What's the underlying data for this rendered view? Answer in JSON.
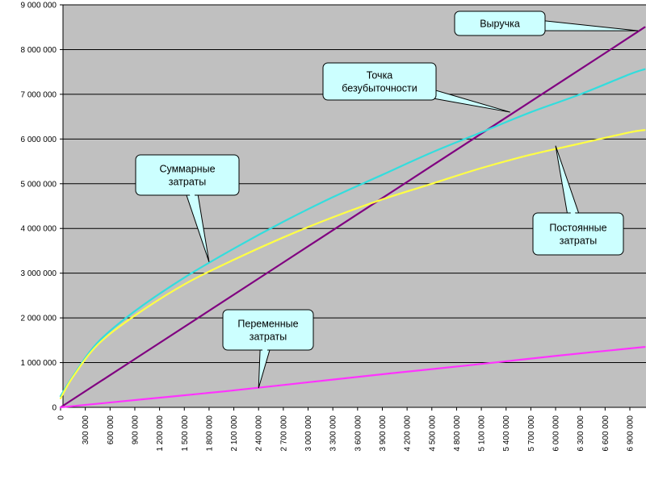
{
  "chart_data": {
    "type": "line",
    "title": "",
    "xlabel": "",
    "ylabel": "",
    "xlim": [
      0,
      7200000
    ],
    "ylim": [
      0,
      9000000
    ],
    "grid": true,
    "colors": {
      "plot_background": "#c0c0c0",
      "gridline": "#000000",
      "callout_fill": "#ccffff"
    },
    "y_tick_labels": [
      "0",
      "1 000 000",
      "2 000 000",
      "3 000 000",
      "4 000 000",
      "5 000 000",
      "6 000 000",
      "7 000 000",
      "8 000 000",
      "9 000 000"
    ],
    "x_tick_labels": [
      "0",
      "300 000",
      "600 000",
      "900 000",
      "1 200 000",
      "1 500 000",
      "1 800 000",
      "2 100 000",
      "2 400 000",
      "2 700 000",
      "3 000 000",
      "3 300 000",
      "3 600 000",
      "3 900 000",
      "4 200 000",
      "4 500 000",
      "4 800 000",
      "5 100 000",
      "5 400 000",
      "5 700 000",
      "6 000 000",
      "6 300 000",
      "6 600 000",
      "6 900 000"
    ],
    "series": [
      {
        "name": "Выручка",
        "color": "#800080",
        "x": [
          0,
          900000,
          1800000,
          2700000,
          3600000,
          4500000,
          5400000,
          6300000,
          7080000
        ],
        "values": [
          0,
          1080000,
          2160000,
          3240000,
          4320000,
          5400000,
          6480000,
          7560000,
          8500000
        ]
      },
      {
        "name": "Суммарные затраты",
        "color": "#33dddd",
        "x": [
          0,
          150000,
          450000,
          900000,
          1500000,
          2100000,
          2700000,
          3300000,
          3900000,
          4500000,
          5100000,
          5700000,
          6300000,
          6900000,
          7080000
        ],
        "values": [
          250000,
          700000,
          1450000,
          2150000,
          2900000,
          3550000,
          4150000,
          4700000,
          5200000,
          5700000,
          6150000,
          6600000,
          7000000,
          7450000,
          7560000
        ]
      },
      {
        "name": "Постоянные затраты",
        "color": "#ffff44",
        "x": [
          0,
          150000,
          450000,
          900000,
          1500000,
          2100000,
          2700000,
          3300000,
          3900000,
          4500000,
          5100000,
          5700000,
          6300000,
          6900000,
          7080000
        ],
        "values": [
          200000,
          680000,
          1400000,
          2050000,
          2750000,
          3300000,
          3800000,
          4250000,
          4650000,
          5000000,
          5350000,
          5650000,
          5900000,
          6150000,
          6200000
        ]
      },
      {
        "name": "Переменные затраты",
        "color": "#ff33ff",
        "x": [
          0,
          1000000,
          2000000,
          3000000,
          4000000,
          5000000,
          6000000,
          7080000
        ],
        "values": [
          0,
          180000,
          360000,
          560000,
          760000,
          950000,
          1150000,
          1350000
        ]
      }
    ],
    "annotations": [
      {
        "id": "revenue",
        "lines": [
          "Выручка"
        ],
        "target_x": 7000000,
        "target_y": 8420000
      },
      {
        "id": "breakeven",
        "lines": [
          "Точка",
          "безубыточности"
        ],
        "target_x": 5450000,
        "target_y": 6600000
      },
      {
        "id": "total",
        "lines": [
          "Суммарные",
          "затраты"
        ],
        "target_x": 1800000,
        "target_y": 3250000
      },
      {
        "id": "fixed",
        "lines": [
          "Постоянные",
          "затраты"
        ],
        "target_x": 6000000,
        "target_y": 5850000
      },
      {
        "id": "variable",
        "lines": [
          "Переменные",
          "затраты"
        ],
        "target_x": 2400000,
        "target_y": 430000
      }
    ]
  }
}
